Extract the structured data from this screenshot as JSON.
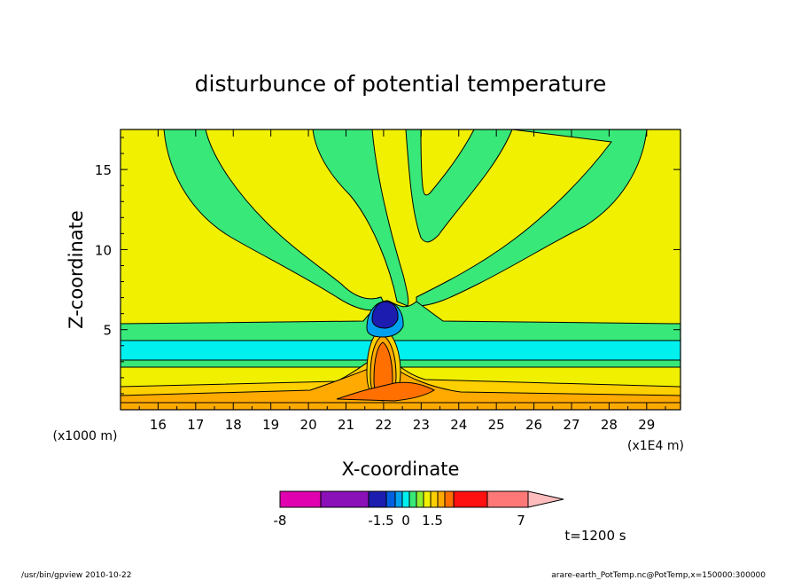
{
  "chart_data": {
    "type": "heatmap",
    "title": "disturbunce of potential temperature",
    "xlabel": "X-coordinate",
    "ylabel": "Z-coordinate",
    "x_unit": "(x1E4 m)",
    "y_unit": "(x1000 m)",
    "xlim": [
      15.0,
      29.9
    ],
    "ylim": [
      0,
      17.5
    ],
    "x_ticks": [
      "16",
      "17",
      "18",
      "19",
      "20",
      "21",
      "22",
      "23",
      "24",
      "25",
      "26",
      "27",
      "28",
      "29"
    ],
    "y_ticks": [
      "5",
      "10",
      "15"
    ],
    "colorbar": {
      "colors": [
        "#e000b0",
        "#8a10b8",
        "#1c1cb0",
        "#0060e0",
        "#00a0f0",
        "#00f0f0",
        "#38e878",
        "#90ee30",
        "#f0f000",
        "#ffd000",
        "#ffaa00",
        "#ff7000",
        "#ff1010",
        "#ff7878",
        "#ffbcbc"
      ],
      "labels": [
        "-8",
        "-1.5",
        "0",
        "1.5",
        "7"
      ]
    },
    "time_label": "t=1200 s",
    "zones": {
      "background": "#f0f000",
      "band_upper": "#38e878",
      "band_mid": "#00f0f0",
      "band_lower": "#38e878",
      "plume_green": "#38e878",
      "cold_core": "#1c1cb0",
      "warm_layers": [
        "#ffd000",
        "#ffaa00",
        "#ff7000"
      ],
      "warm_core": "#ff7000"
    }
  },
  "footer": {
    "left": "/usr/bin/gpview   2010-10-22",
    "right": "arare-earth_PotTemp.nc@PotTemp,x=150000:300000"
  }
}
